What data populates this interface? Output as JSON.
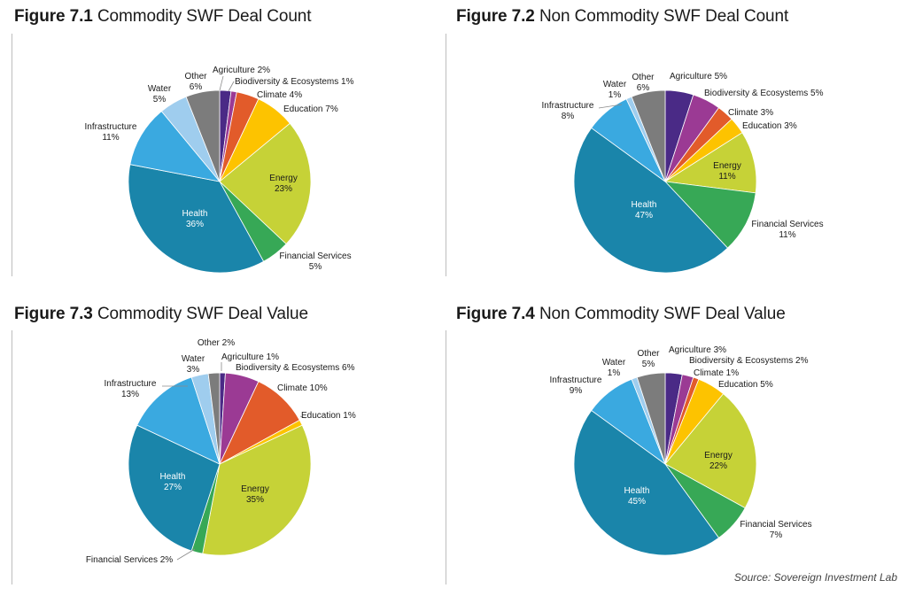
{
  "colors": {
    "Agriculture": "#4a2a86",
    "Biodiversity & Ecosystems": "#9b3a94",
    "Climate": "#e25b2a",
    "Education": "#fdc300",
    "Energy": "#c6d237",
    "Financial Services": "#37a856",
    "Health": "#1a85aa",
    "Infrastructure": "#3aa9e0",
    "Water": "#9fcdee",
    "Other": "#7c7c7c"
  },
  "source": "Source: Sovereign Investment Lab",
  "figures": [
    {
      "number": "Figure 7.1",
      "name": "Commodity SWF Deal Count",
      "chart_data": {
        "type": "pie",
        "title": "Figure 7.1 Commodity SWF Deal Count",
        "slices": [
          {
            "label": "Agriculture",
            "value": 2,
            "text": "2%"
          },
          {
            "label": "Biodiversity & Ecosystems",
            "value": 1,
            "text": "1%"
          },
          {
            "label": "Climate",
            "value": 4,
            "text": "4%"
          },
          {
            "label": "Education",
            "value": 7,
            "text": "7%"
          },
          {
            "label": "Energy",
            "value": 23,
            "text": "23%"
          },
          {
            "label": "Financial Services",
            "value": 5,
            "text": "5%"
          },
          {
            "label": "Health",
            "value": 36,
            "text": "36%"
          },
          {
            "label": "Infrastructure",
            "value": 11,
            "text": "11%"
          },
          {
            "label": "Water",
            "value": 5,
            "text": "5%"
          },
          {
            "label": "Other",
            "value": 6,
            "text": "6%"
          }
        ]
      }
    },
    {
      "number": "Figure 7.2",
      "name": "Non Commodity SWF Deal Count",
      "chart_data": {
        "type": "pie",
        "title": "Figure 7.2 Non Commodity SWF Deal Count",
        "slices": [
          {
            "label": "Agriculture",
            "value": 5,
            "text": "5%"
          },
          {
            "label": "Biodiversity & Ecosystems",
            "value": 5,
            "text": "5%"
          },
          {
            "label": "Climate",
            "value": 3,
            "text": "3%"
          },
          {
            "label": "Education",
            "value": 3,
            "text": "3%"
          },
          {
            "label": "Energy",
            "value": 11,
            "text": "11%"
          },
          {
            "label": "Financial Services",
            "value": 11,
            "text": "11%"
          },
          {
            "label": "Health",
            "value": 47,
            "text": "47%"
          },
          {
            "label": "Infrastructure",
            "value": 8,
            "text": "8%"
          },
          {
            "label": "Water",
            "value": 1,
            "text": "1%"
          },
          {
            "label": "Other",
            "value": 6,
            "text": "6%"
          }
        ]
      }
    },
    {
      "number": "Figure 7.3",
      "name": "Commodity SWF Deal Value",
      "chart_data": {
        "type": "pie",
        "title": "Figure 7.3 Commodity SWF Deal Value",
        "slices": [
          {
            "label": "Agriculture",
            "value": 1,
            "text": "1%"
          },
          {
            "label": "Biodiversity & Ecosystems",
            "value": 6,
            "text": "6%"
          },
          {
            "label": "Climate",
            "value": 10,
            "text": "10%"
          },
          {
            "label": "Education",
            "value": 1,
            "text": "1%"
          },
          {
            "label": "Energy",
            "value": 35,
            "text": "35%"
          },
          {
            "label": "Financial Services",
            "value": 2,
            "text": "2%"
          },
          {
            "label": "Health",
            "value": 27,
            "text": "27%"
          },
          {
            "label": "Infrastructure",
            "value": 13,
            "text": "13%"
          },
          {
            "label": "Water",
            "value": 3,
            "text": "3%"
          },
          {
            "label": "Other",
            "value": 2,
            "text": "2%"
          }
        ]
      }
    },
    {
      "number": "Figure 7.4",
      "name": "Non Commodity SWF Deal Value",
      "chart_data": {
        "type": "pie",
        "title": "Figure 7.4 Non Commodity SWF Deal Value",
        "slices": [
          {
            "label": "Agriculture",
            "value": 3,
            "text": "3%"
          },
          {
            "label": "Biodiversity & Ecosystems",
            "value": 2,
            "text": "2%"
          },
          {
            "label": "Climate",
            "value": 1,
            "text": "1%"
          },
          {
            "label": "Education",
            "value": 5,
            "text": "5%"
          },
          {
            "label": "Energy",
            "value": 22,
            "text": "22%"
          },
          {
            "label": "Financial Services",
            "value": 7,
            "text": "7%"
          },
          {
            "label": "Health",
            "value": 45,
            "text": "45%"
          },
          {
            "label": "Infrastructure",
            "value": 9,
            "text": "9%"
          },
          {
            "label": "Water",
            "value": 1,
            "text": "1%"
          },
          {
            "label": "Other",
            "value": 5,
            "text": "5%"
          }
        ]
      }
    }
  ]
}
